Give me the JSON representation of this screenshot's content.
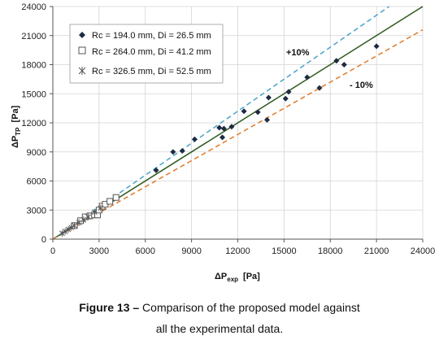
{
  "chart_data": {
    "type": "scatter",
    "xlim": [
      0,
      24000
    ],
    "ylim": [
      0,
      24000
    ],
    "x_ticks": [
      0,
      3000,
      6000,
      9000,
      12000,
      15000,
      18000,
      21000,
      24000
    ],
    "y_ticks": [
      0,
      3000,
      6000,
      9000,
      12000,
      15000,
      18000,
      21000,
      24000
    ],
    "x_tick_labels": [
      "0",
      "3000",
      "6000",
      "9000",
      "12000",
      "15000",
      "18000",
      "21000",
      "24000"
    ],
    "y_tick_labels": [
      "0",
      "3000",
      "6000",
      "9000",
      "12000",
      "15000",
      "18000",
      "21000",
      "24000"
    ],
    "xlabel_main": "ΔP",
    "xlabel_sub": "exp",
    "xlabel_unit": "[Pa]",
    "ylabel_main": "ΔP",
    "ylabel_sub": "TP",
    "ylabel_unit": "[Pa]",
    "grid": true,
    "legend_placement": "top-left",
    "annotations": {
      "plus": "+10%",
      "minus": "- 10%"
    },
    "lines": [
      {
        "kind": "identity",
        "slope": 1.0,
        "color": "#2e5a1e",
        "dash": ""
      },
      {
        "kind": "plus10",
        "slope": 1.1,
        "color": "#4aa3c8",
        "dash": "6,4"
      },
      {
        "kind": "minus10",
        "slope": 0.9,
        "color": "#e07a28",
        "dash": "6,4"
      }
    ],
    "series": [
      {
        "name": "Rc = 194.0 mm, Di = 26.5 mm",
        "marker": "diamond",
        "color": "#1f2a44",
        "x": [
          6700,
          7800,
          8400,
          9200,
          10800,
          11000,
          11100,
          11600,
          12400,
          13300,
          13900,
          14000,
          15100,
          15300,
          16500,
          17300,
          18400,
          18900,
          21000
        ],
        "y": [
          7100,
          9000,
          9100,
          10300,
          11500,
          10500,
          11400,
          11600,
          13200,
          13100,
          12300,
          14600,
          14500,
          15200,
          16700,
          15600,
          18400,
          18000,
          19900
        ]
      },
      {
        "name": "Rc = 264.0 mm, Di = 41.2 mm",
        "marker": "square",
        "color": "#555555",
        "x": [
          1400,
          1800,
          2100,
          2400,
          2700,
          2900,
          3000,
          3200,
          3400,
          3700,
          4100
        ],
        "y": [
          1400,
          1900,
          2300,
          2400,
          2500,
          2500,
          3000,
          3400,
          3600,
          3900,
          4300
        ]
      },
      {
        "name": "Rc = 326.5 mm, Di = 52.5 mm",
        "marker": "star",
        "color": "#555555",
        "x": [
          600,
          800,
          1000,
          1200,
          1400,
          1700,
          2000,
          2300,
          2700,
          3100
        ],
        "y": [
          600,
          800,
          1000,
          1200,
          1400,
          1700,
          2000,
          2300,
          2800,
          3200
        ]
      }
    ]
  },
  "caption": {
    "figure_label": "Figure 13 –",
    "line1": "Comparison of the proposed model against",
    "line2": "all the experimental data."
  }
}
